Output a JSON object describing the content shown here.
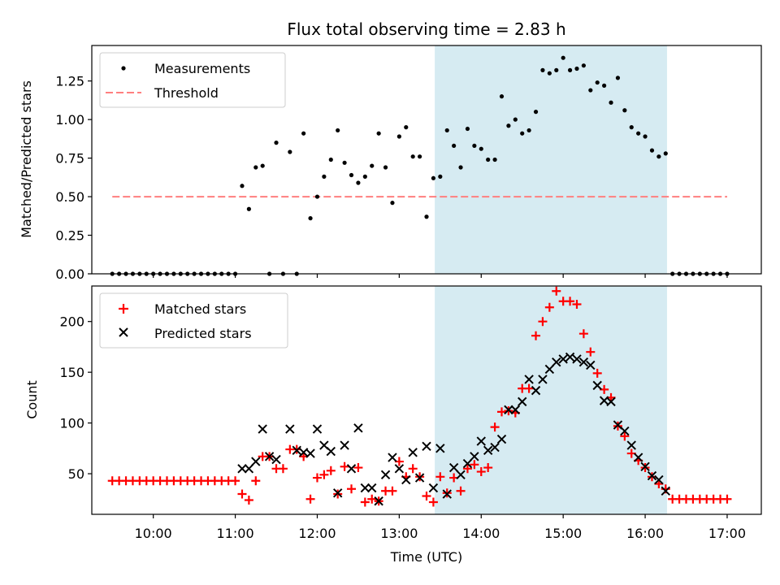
{
  "chart_data": [
    {
      "type": "scatter",
      "title": "Flux total observing time = 2.83 h",
      "xlabel": "",
      "ylabel": "Matched/Predicted stars",
      "xlim": [
        "09:15",
        "17:25"
      ],
      "ylim": [
        0,
        1.48
      ],
      "yticks": [
        "0.00",
        "0.25",
        "0.50",
        "0.75",
        "1.00",
        "1.25"
      ],
      "x_tick_labels_shown": false,
      "shaded_interval": [
        "13:26",
        "16:16"
      ],
      "shade_color": "#add8e6",
      "legend": {
        "position": "upper-left"
      },
      "threshold": {
        "name": "Threshold",
        "value": 0.5,
        "x_range": [
          "09:30",
          "17:00"
        ],
        "color": "#ff7f7f",
        "style": "dashed"
      },
      "series": [
        {
          "name": "Measurements",
          "marker": "dot",
          "color": "#000000",
          "x": [
            "09:30",
            "09:35",
            "09:40",
            "09:45",
            "09:50",
            "09:55",
            "10:00",
            "10:05",
            "10:10",
            "10:15",
            "10:20",
            "10:25",
            "10:30",
            "10:35",
            "10:40",
            "10:45",
            "10:50",
            "10:55",
            "11:00",
            "11:05",
            "11:10",
            "11:15",
            "11:20",
            "11:25",
            "11:30",
            "11:35",
            "11:40",
            "11:45",
            "11:50",
            "11:55",
            "12:00",
            "12:05",
            "12:10",
            "12:15",
            "12:20",
            "12:25",
            "12:30",
            "12:35",
            "12:40",
            "12:45",
            "12:50",
            "12:55",
            "13:00",
            "13:05",
            "13:10",
            "13:15",
            "13:20",
            "13:25",
            "13:30",
            "13:35",
            "13:40",
            "13:45",
            "13:50",
            "13:55",
            "14:00",
            "14:05",
            "14:10",
            "14:15",
            "14:20",
            "14:25",
            "14:30",
            "14:35",
            "14:40",
            "14:45",
            "14:50",
            "14:55",
            "15:00",
            "15:05",
            "15:10",
            "15:15",
            "15:20",
            "15:25",
            "15:30",
            "15:35",
            "15:40",
            "15:45",
            "15:50",
            "15:55",
            "16:00",
            "16:05",
            "16:10",
            "16:15",
            "16:20",
            "16:25",
            "16:30",
            "16:35",
            "16:40",
            "16:45",
            "16:50",
            "16:55",
            "17:00"
          ],
          "y": [
            0,
            0,
            0,
            0,
            0,
            0,
            0,
            0,
            0,
            0,
            0,
            0,
            0,
            0,
            0,
            0,
            0,
            0,
            0,
            0.57,
            0.42,
            0.69,
            0.7,
            0,
            0.85,
            0,
            0.79,
            0,
            0.91,
            0.36,
            0.5,
            0.63,
            0.74,
            0.93,
            0.72,
            0.64,
            0.59,
            0.63,
            0.7,
            0.91,
            0.69,
            0.46,
            0.89,
            0.95,
            0.76,
            0.76,
            0.37,
            0.62,
            0.63,
            0.93,
            0.83,
            0.69,
            0.94,
            0.83,
            0.81,
            0.74,
            0.74,
            1.15,
            0.96,
            1.0,
            0.91,
            0.93,
            1.05,
            1.32,
            1.3,
            1.32,
            1.4,
            1.32,
            1.33,
            1.35,
            1.19,
            1.24,
            1.22,
            1.11,
            1.27,
            1.06,
            0.95,
            0.91,
            0.89,
            0.8,
            0.76,
            0.78,
            0,
            0,
            0,
            0,
            0,
            0,
            0,
            0,
            0
          ]
        }
      ]
    },
    {
      "type": "scatter",
      "title": "",
      "xlabel": "Time (UTC)",
      "ylabel": "Count",
      "xlim": [
        "09:15",
        "17:25"
      ],
      "ylim": [
        10,
        235
      ],
      "yticks": [
        "50",
        "100",
        "150",
        "200"
      ],
      "xticks": [
        "10:00",
        "11:00",
        "12:00",
        "13:00",
        "14:00",
        "15:00",
        "16:00",
        "17:00"
      ],
      "shaded_interval": [
        "13:26",
        "16:16"
      ],
      "shade_color": "#add8e6",
      "legend": {
        "position": "upper-left"
      },
      "series": [
        {
          "name": "Matched stars",
          "marker": "plus",
          "color": "#ff0000",
          "x": [
            "09:30",
            "09:35",
            "09:40",
            "09:45",
            "09:50",
            "09:55",
            "10:00",
            "10:05",
            "10:10",
            "10:15",
            "10:20",
            "10:25",
            "10:30",
            "10:35",
            "10:40",
            "10:45",
            "10:50",
            "10:55",
            "11:00",
            "11:05",
            "11:10",
            "11:15",
            "11:20",
            "11:25",
            "11:30",
            "11:35",
            "11:40",
            "11:45",
            "11:50",
            "11:55",
            "12:00",
            "12:05",
            "12:10",
            "12:15",
            "12:20",
            "12:25",
            "12:30",
            "12:35",
            "12:40",
            "12:45",
            "12:50",
            "12:55",
            "13:00",
            "13:05",
            "13:10",
            "13:15",
            "13:20",
            "13:25",
            "13:30",
            "13:35",
            "13:40",
            "13:45",
            "13:50",
            "13:55",
            "14:00",
            "14:05",
            "14:10",
            "14:15",
            "14:20",
            "14:25",
            "14:30",
            "14:35",
            "14:40",
            "14:45",
            "14:50",
            "14:55",
            "15:00",
            "15:05",
            "15:10",
            "15:15",
            "15:20",
            "15:25",
            "15:30",
            "15:35",
            "15:40",
            "15:45",
            "15:50",
            "15:55",
            "16:00",
            "16:05",
            "16:10",
            "16:15",
            "16:20",
            "16:25",
            "16:30",
            "16:35",
            "16:40",
            "16:45",
            "16:50",
            "16:55",
            "17:00"
          ],
          "y": [
            43,
            43,
            43,
            43,
            43,
            43,
            43,
            43,
            43,
            43,
            43,
            43,
            43,
            43,
            43,
            43,
            43,
            43,
            43,
            30,
            24,
            43,
            67,
            67,
            55,
            55,
            74,
            74,
            67,
            25,
            46,
            49,
            53,
            30,
            57,
            35,
            56,
            22,
            25,
            23,
            33,
            33,
            62,
            47,
            55,
            47,
            28,
            22,
            47,
            31,
            46,
            33,
            55,
            59,
            52,
            56,
            96,
            111,
            112,
            110,
            134,
            134,
            186,
            200,
            214,
            230,
            220,
            220,
            217,
            188,
            170,
            149,
            133,
            125,
            97,
            87,
            70,
            63,
            56,
            47,
            40,
            35,
            25,
            25,
            25,
            25,
            25,
            25,
            25,
            25,
            25
          ]
        },
        {
          "name": "Predicted stars",
          "marker": "x",
          "color": "#000000",
          "x": [
            "11:05",
            "11:10",
            "11:15",
            "11:20",
            "11:25",
            "11:30",
            "11:40",
            "11:45",
            "11:50",
            "11:55",
            "12:00",
            "12:05",
            "12:10",
            "12:15",
            "12:20",
            "12:25",
            "12:30",
            "12:35",
            "12:40",
            "12:45",
            "12:50",
            "12:55",
            "13:00",
            "13:05",
            "13:10",
            "13:15",
            "13:20",
            "13:25",
            "13:30",
            "13:35",
            "13:40",
            "13:45",
            "13:50",
            "13:55",
            "14:00",
            "14:05",
            "14:10",
            "14:15",
            "14:20",
            "14:25",
            "14:30",
            "14:35",
            "14:40",
            "14:45",
            "14:50",
            "14:55",
            "15:00",
            "15:05",
            "15:10",
            "15:15",
            "15:20",
            "15:25",
            "15:30",
            "15:35",
            "15:40",
            "15:45",
            "15:50",
            "15:55",
            "16:00",
            "16:05",
            "16:10",
            "16:15"
          ],
          "y": [
            55,
            55,
            62,
            94,
            67,
            64,
            94,
            73,
            71,
            70,
            94,
            78,
            72,
            31,
            78,
            55,
            95,
            36,
            36,
            23,
            49,
            66,
            55,
            44,
            71,
            46,
            77,
            36,
            75,
            30,
            56,
            49,
            60,
            67,
            82,
            73,
            76,
            84,
            113,
            113,
            121,
            143,
            132,
            143,
            153,
            160,
            163,
            165,
            163,
            160,
            157,
            137,
            122,
            121,
            98,
            92,
            78,
            66,
            57,
            48,
            44,
            33
          ]
        }
      ]
    }
  ]
}
